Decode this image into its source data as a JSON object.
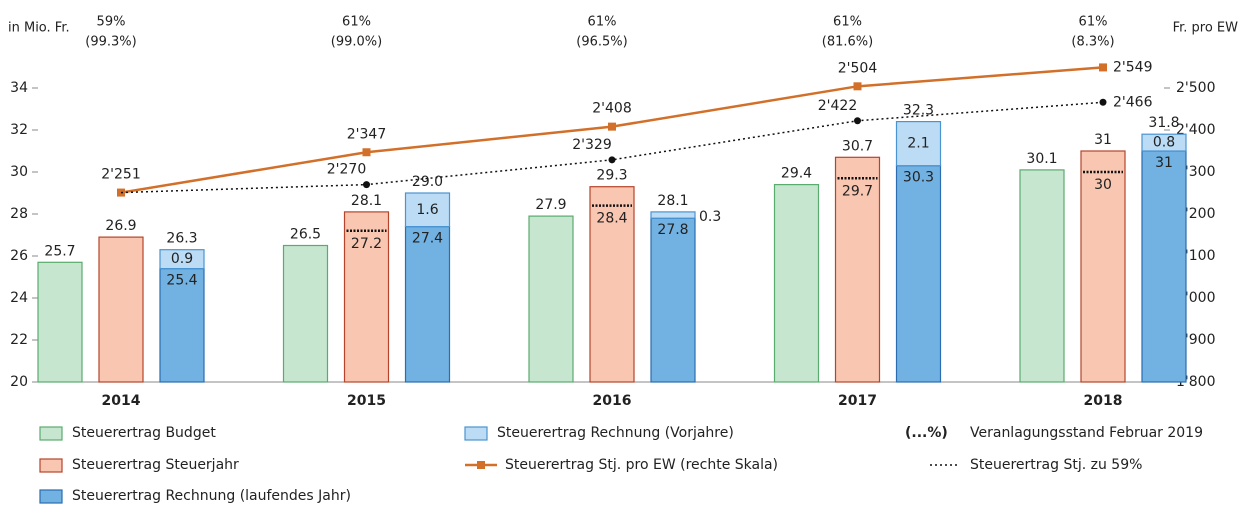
{
  "chart_data": {
    "type": "bar",
    "y_label": "in Mio. Fr.",
    "y2_label": "Fr. pro EW",
    "categories": [
      "2014",
      "2015",
      "2016",
      "2017",
      "2018"
    ],
    "top_share": [
      "59%",
      "61%",
      "61%",
      "61%",
      "61%"
    ],
    "top_status": [
      "(99.3%)",
      "(99.0%)",
      "(96.5%)",
      "(81.6%)",
      "(8.3%)"
    ],
    "ylim": [
      20,
      35
    ],
    "yticks": [
      20,
      22,
      24,
      26,
      28,
      30,
      32,
      34
    ],
    "y2lim": [
      1800,
      2550
    ],
    "y2ticks": [
      {
        "value": 1800,
        "label": "1'800"
      },
      {
        "value": 1900,
        "label": "1'900"
      },
      {
        "value": 2000,
        "label": "2'000"
      },
      {
        "value": 2100,
        "label": "2'100"
      },
      {
        "value": 2200,
        "label": "2'200"
      },
      {
        "value": 2300,
        "label": "2'300"
      },
      {
        "value": 2400,
        "label": "2'400"
      },
      {
        "value": 2500,
        "label": "2'500"
      }
    ],
    "series": [
      {
        "name": "Steuerertrag Budget",
        "color": "#c6e6d0",
        "stroke": "#5aab6e",
        "values": [
          25.7,
          26.5,
          27.9,
          29.4,
          30.1
        ]
      },
      {
        "name": "Steuerertrag Steuerjahr",
        "color": "#f8c6b1",
        "stroke": "#b5442a",
        "values": [
          26.9,
          28.1,
          29.3,
          30.7,
          31.0
        ],
        "marker_values": [
          null,
          27.2,
          28.4,
          29.7,
          30.0
        ]
      },
      {
        "name": "Steuerertrag Rechnung (laufendes Jahr)",
        "color": "#72b2e2",
        "stroke": "#2a6db0",
        "values": [
          25.4,
          27.4,
          27.8,
          30.3,
          31.0
        ]
      },
      {
        "name": "Steuerertrag Rechnung (Vorjahre)",
        "color": "#bcdcf5",
        "stroke": "#4a94d2",
        "values": [
          0.9,
          1.6,
          0.3,
          2.1,
          0.8
        ],
        "total_labels": [
          "26.3",
          "29.0",
          "28.1",
          "32.3",
          "31.8"
        ]
      },
      {
        "name": "Steuerertrag Stj. pro EW (rechte Skala)",
        "color": "#d2702a",
        "axis": "y2",
        "values": [
          2251,
          2347,
          2408,
          2504,
          2549
        ],
        "value_labels": [
          "2'251",
          "2'347",
          "2'408",
          "2'504",
          "2'549"
        ]
      },
      {
        "name": "Steuerertrag Stj. zu 59%",
        "color": "#111111",
        "axis": "y2",
        "dashed": true,
        "values": [
          2251,
          2270,
          2329,
          2422,
          2466
        ],
        "value_labels": [
          null,
          "2'270",
          "2'329",
          "2'422",
          "2'466"
        ]
      }
    ],
    "legend_note": {
      "symbol": "(...%)",
      "text": "Veranlagungsstand Februar 2019"
    }
  }
}
